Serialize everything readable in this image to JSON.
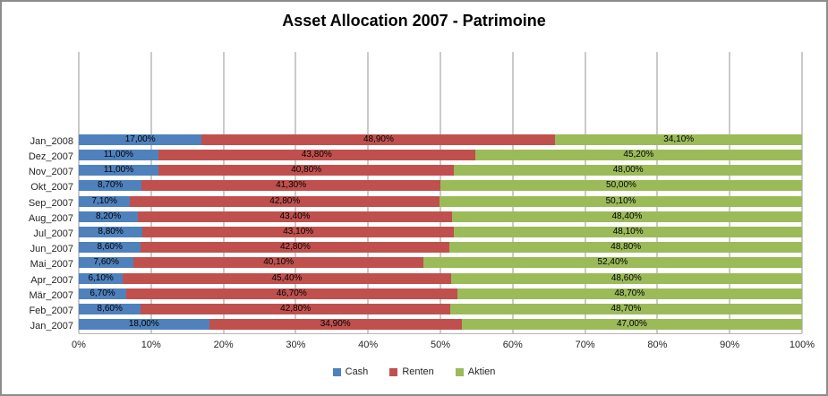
{
  "title": "Asset Allocation 2007 - Patrimoine",
  "chart_data": {
    "type": "bar",
    "variant": "horizontal-stacked-100",
    "title": "Asset Allocation 2007 - Patrimoine",
    "categories": [
      "Jan_2008",
      "Dez_2007",
      "Nov_2007",
      "Okt_2007",
      "Sep_2007",
      "Aug_2007",
      "Jul_2007",
      "Jun_2007",
      "Mai_2007",
      "Apr_2007",
      "Mär_2007",
      "Feb_2007",
      "Jan_2007"
    ],
    "series": [
      {
        "name": "Cash",
        "color": "#4F81BD",
        "values": [
          17.0,
          11.0,
          11.0,
          8.7,
          7.1,
          8.2,
          8.8,
          8.6,
          7.6,
          6.1,
          6.7,
          8.6,
          18.0
        ],
        "labels": [
          "17,00%",
          "11,00%",
          "11,00%",
          "8,70%",
          "7,10%",
          "8,20%",
          "8,80%",
          "8,60%",
          "7,60%",
          "6,10%",
          "6,70%",
          "8,60%",
          "18,00%"
        ]
      },
      {
        "name": "Renten",
        "color": "#C0504D",
        "values": [
          48.9,
          43.8,
          40.8,
          41.3,
          42.8,
          43.4,
          43.1,
          42.8,
          40.1,
          45.4,
          46.7,
          42.8,
          34.9
        ],
        "labels": [
          "48,90%",
          "43,80%",
          "40,80%",
          "41,30%",
          "42,80%",
          "43,40%",
          "43,10%",
          "42,80%",
          "40,10%",
          "45,40%",
          "46,70%",
          "42,80%",
          "34,90%"
        ]
      },
      {
        "name": "Aktien",
        "color": "#9BBB59",
        "values": [
          34.1,
          45.2,
          48.0,
          50.0,
          50.1,
          48.4,
          48.1,
          48.8,
          52.4,
          48.6,
          48.7,
          48.7,
          47.0
        ],
        "labels": [
          "34,10%",
          "45,20%",
          "48,00%",
          "50,00%",
          "50,10%",
          "48,40%",
          "48,10%",
          "48,80%",
          "52,40%",
          "48,60%",
          "48,70%",
          "48,70%",
          "47,00%"
        ]
      }
    ],
    "x_ticks": [
      "0%",
      "10%",
      "20%",
      "30%",
      "40%",
      "50%",
      "60%",
      "70%",
      "80%",
      "90%",
      "100%"
    ],
    "xlim": [
      0,
      100
    ],
    "grid": true,
    "legend_position": "bottom",
    "gridline_color": "#949494"
  }
}
